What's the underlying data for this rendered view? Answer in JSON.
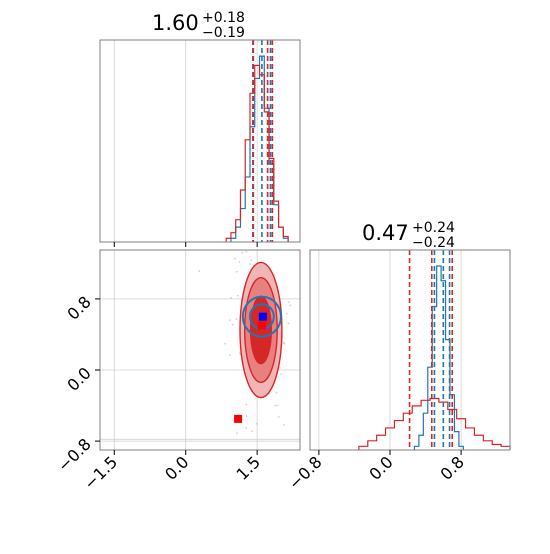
{
  "chart_data": [
    {
      "type": "histogram",
      "panel": "top-left",
      "title": {
        "value": "1.60",
        "plus": "+0.18",
        "minus": "−0.19"
      },
      "xlim": [
        -1.8,
        2.4
      ],
      "x_ticks": [
        -1.5,
        0.0,
        1.5
      ],
      "grid": true,
      "series": [
        {
          "color": "#1f77b4",
          "bins": [
            1.0,
            1.1,
            1.2,
            1.3,
            1.4,
            1.5,
            1.6,
            1.7,
            1.8,
            1.9,
            2.0,
            2.1
          ],
          "counts": [
            0.02,
            0.08,
            0.18,
            0.35,
            0.62,
            0.88,
            1.0,
            0.72,
            0.42,
            0.2,
            0.08,
            0.02
          ],
          "quantile_lines": [
            1.41,
            1.6,
            1.78
          ]
        },
        {
          "color": "#d62728",
          "bins": [
            0.9,
            1.0,
            1.1,
            1.2,
            1.3,
            1.4,
            1.5,
            1.6,
            1.7,
            1.8,
            1.9,
            2.0,
            2.1
          ],
          "counts": [
            0.02,
            0.05,
            0.12,
            0.28,
            0.55,
            0.8,
            0.95,
            0.9,
            0.7,
            0.45,
            0.22,
            0.08,
            0.03
          ],
          "quantile_lines": [
            1.42,
            1.72,
            1.82
          ]
        }
      ]
    },
    {
      "type": "contour",
      "panel": "bottom-left",
      "xlim": [
        -1.8,
        2.4
      ],
      "ylim": [
        -0.9,
        1.35
      ],
      "x_ticks": [
        -1.5,
        0.0,
        1.5
      ],
      "y_ticks": [
        -0.8,
        0.0,
        0.8
      ],
      "x_tick_labels": [
        "−1.5",
        "0.0",
        "1.5"
      ],
      "y_tick_labels": [
        "−0.8",
        "0.0",
        "0.8"
      ],
      "grid": true,
      "series": [
        {
          "color": "#d62728",
          "center": [
            1.58,
            0.45
          ],
          "sigma": [
            0.22,
            0.38
          ]
        },
        {
          "color": "#1f77b4",
          "center": [
            1.6,
            0.6
          ],
          "sigma": [
            0.25,
            0.14
          ]
        }
      ],
      "markers": [
        {
          "color": "#ff0000",
          "shape": "square",
          "x": 1.1,
          "y": -0.55
        },
        {
          "color": "#ff0000",
          "shape": "square",
          "x": 1.6,
          "y": 0.5
        },
        {
          "color": "#0000ff",
          "shape": "square",
          "x": 1.62,
          "y": 0.6
        }
      ],
      "hlines": [
        -0.78
      ]
    },
    {
      "type": "histogram",
      "panel": "bottom-right",
      "title": {
        "value": "0.47",
        "plus": "+0.24",
        "minus": "−0.24"
      },
      "xlim": [
        -0.9,
        1.35
      ],
      "x_ticks": [
        -0.8,
        0.0,
        0.8
      ],
      "x_tick_labels": [
        "−0.8",
        "0.0",
        "0.8"
      ],
      "grid": true,
      "series": [
        {
          "color": "#1f77b4",
          "bins": [
            0.3,
            0.35,
            0.4,
            0.45,
            0.5,
            0.55,
            0.6,
            0.65,
            0.7,
            0.75,
            0.8
          ],
          "counts": [
            0.02,
            0.08,
            0.2,
            0.45,
            0.78,
            1.0,
            0.92,
            0.6,
            0.3,
            0.1,
            0.02
          ],
          "quantile_lines": [
            0.5,
            0.6,
            0.67
          ]
        },
        {
          "color": "#d62728",
          "bins": [
            -0.3,
            -0.2,
            -0.1,
            0.0,
            0.1,
            0.2,
            0.3,
            0.4,
            0.5,
            0.6,
            0.7,
            0.8,
            0.9,
            1.0,
            1.1,
            1.2,
            1.3
          ],
          "counts": [
            0.02,
            0.05,
            0.08,
            0.12,
            0.16,
            0.2,
            0.24,
            0.27,
            0.28,
            0.26,
            0.22,
            0.17,
            0.12,
            0.08,
            0.05,
            0.03,
            0.02
          ],
          "quantile_lines": [
            0.22,
            0.47,
            0.7
          ]
        }
      ]
    }
  ]
}
